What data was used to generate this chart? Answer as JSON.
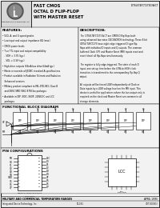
{
  "title1": "FAST CMOS",
  "title2": "OCTAL D FLIP-FLOP",
  "title3": "WITH MASTER RESET",
  "part_number": "IDT64/74FCT273D/A/CT",
  "company": "Integrated Device Technology, Inc.",
  "features_title": "FEATURES:",
  "features": [
    "• 50Ω, A, and G speed grades",
    "• Low input and output impedance 8Ω (max.)",
    "• CMOS power levels",
    "• True TTL input and output compatibility",
    "   - VOH = 3.3V (typ.)",
    "   - VOL = 0.3V (typ.)",
    "• High-drive outputs (64mA bus drive 64mA typ.)",
    "• Meets or exceeds all JEDEC standard A specifications",
    "• Product available in Radiation Tolerant and Radiation",
    "   Enhanced versions",
    "• Military product compliant to MIL-STD-883, Class B",
    "   and DESC SMD 5962-87563xx packages",
    "• Available in DIP, SOIC, SSOP, 22WSOIC and LCC",
    "   packages"
  ],
  "description_title": "DESCRIPTION:",
  "desc_lines": [
    "The IDT54/74FCT273 A-CT are CMOS D flip-flops built",
    "using advanced low noise CBiC/BiCMOS technology. These 8-bit",
    "IDT54/74FCT273 have eight edge-triggered D-type flip-",
    "flops with individual D inputs and Q outputs. The common",
    "buffered Clock (CP) and Master Reset (MR) inputs reset and",
    "reset (clear) all flip-flops simultaneously.",
    "",
    "The register is fully edge-triggered. The state of each D",
    "input, one set-up time before the LOW-to-HIGH clock",
    "transition, is transferred to the corresponding flip-flop Q",
    "output.",
    "",
    "All outputs will be forced LOW independently of Clock or",
    "Data inputs by a LOW voltage level on the MR input. This",
    "device is useful for applications where the bus output only is",
    "required on the clock and Master Reset are common to all",
    "storage elements."
  ],
  "fbd_title": "FUNCTIONAL BLOCK DIAGRAM",
  "pin_title": "PIN CONFIGURATIONS",
  "pin_labels_left": [
    "MR",
    "Q0",
    "Q1",
    "Q2",
    "Q3",
    "Q4",
    "GND",
    "Q5",
    "Q6",
    "Q7"
  ],
  "pin_labels_right": [
    "VCC",
    "D0",
    "D1",
    "D2",
    "D3",
    "D4",
    "CP",
    "D5",
    "D6",
    "D7"
  ],
  "pin_nums_left": [
    "1",
    "2",
    "3",
    "4",
    "5",
    "6",
    "10",
    "11",
    "12",
    "13"
  ],
  "pin_nums_right": [
    "20",
    "19",
    "18",
    "17",
    "16",
    "15",
    "14",
    "13",
    "12",
    "11"
  ],
  "dip_label": "DIP/SOIC/SSOP/TSSOP\nFOR P/D/Q",
  "lcc_label": "LCC\nFOR W/N",
  "footer_left": "MILITARY AND COMMERCIAL TEMPERATURE RANGES",
  "footer_right": "APRIL 1995",
  "footer_company": "Integrated Device Technology, Inc.",
  "footer_page": "10-181",
  "footer_doc": "IDT 10(081)",
  "white": "#ffffff",
  "black": "#000000",
  "light": "#f2f2f2"
}
